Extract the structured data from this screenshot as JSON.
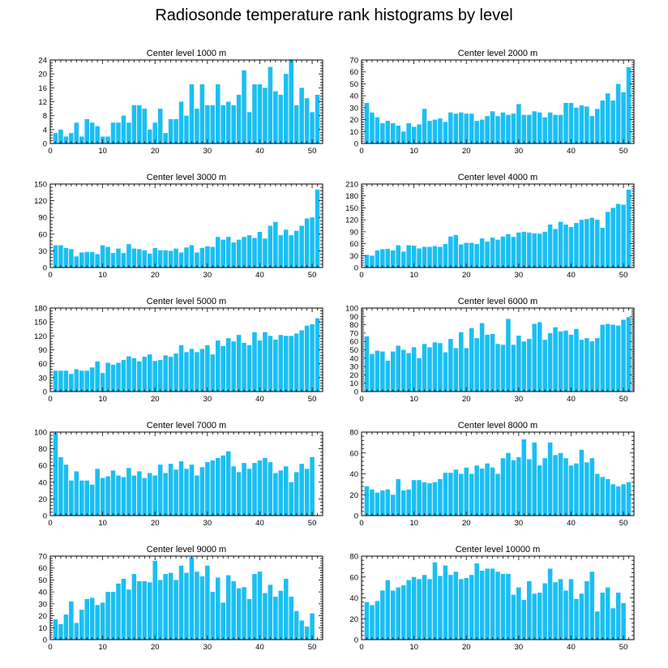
{
  "figure": {
    "title": "Radiosonde temperature rank histograms by level"
  },
  "colors": {
    "bar": "#1ABFF2",
    "axis": "#000000",
    "background": "#ffffff"
  },
  "chart_data": [
    {
      "type": "bar",
      "title": "Center level 1000 m",
      "xlim": [
        0,
        52
      ],
      "ylim": [
        0,
        24
      ],
      "xticks": [
        0,
        10,
        20,
        30,
        40,
        50
      ],
      "yticks": [
        0,
        4,
        8,
        12,
        16,
        20,
        24
      ],
      "x": [
        1,
        2,
        3,
        4,
        5,
        6,
        7,
        8,
        9,
        10,
        11,
        12,
        13,
        14,
        15,
        16,
        17,
        18,
        19,
        20,
        21,
        22,
        23,
        24,
        25,
        26,
        27,
        28,
        29,
        30,
        31,
        32,
        33,
        34,
        35,
        36,
        37,
        38,
        39,
        40,
        41,
        42,
        43,
        44,
        45,
        46,
        47,
        48,
        49,
        50,
        51
      ],
      "values": [
        3,
        4,
        2,
        3,
        6,
        2,
        7,
        6,
        5,
        2,
        2,
        6,
        6,
        8,
        6,
        11,
        11,
        10,
        4,
        6,
        10,
        3,
        7,
        7,
        12,
        8,
        17,
        10,
        17,
        11,
        11,
        17,
        11,
        12,
        11,
        14,
        21,
        9,
        17,
        17,
        16,
        22,
        15,
        14,
        20,
        24,
        11,
        16,
        13,
        9,
        14
      ]
    },
    {
      "type": "bar",
      "title": "Center level 2000 m",
      "xlim": [
        0,
        52
      ],
      "ylim": [
        0,
        70
      ],
      "xticks": [
        0,
        10,
        20,
        30,
        40,
        50
      ],
      "yticks": [
        0,
        10,
        20,
        30,
        40,
        50,
        60,
        70
      ],
      "x": [
        1,
        2,
        3,
        4,
        5,
        6,
        7,
        8,
        9,
        10,
        11,
        12,
        13,
        14,
        15,
        16,
        17,
        18,
        19,
        20,
        21,
        22,
        23,
        24,
        25,
        26,
        27,
        28,
        29,
        30,
        31,
        32,
        33,
        34,
        35,
        36,
        37,
        38,
        39,
        40,
        41,
        42,
        43,
        44,
        45,
        46,
        47,
        48,
        49,
        50,
        51
      ],
      "values": [
        34,
        26,
        22,
        17,
        19,
        17,
        15,
        10,
        17,
        14,
        16,
        29,
        19,
        20,
        21,
        18,
        26,
        25,
        26,
        25,
        25,
        19,
        20,
        23,
        27,
        23,
        26,
        24,
        25,
        33,
        24,
        24,
        27,
        26,
        22,
        26,
        24,
        24,
        34,
        34,
        30,
        32,
        31,
        23,
        29,
        36,
        42,
        36,
        50,
        43,
        64
      ]
    },
    {
      "type": "bar",
      "title": "Center level 3000 m",
      "xlim": [
        0,
        52
      ],
      "ylim": [
        0,
        150
      ],
      "xticks": [
        0,
        10,
        20,
        30,
        40,
        50
      ],
      "yticks": [
        0,
        30,
        60,
        90,
        120,
        150
      ],
      "x": [
        1,
        2,
        3,
        4,
        5,
        6,
        7,
        8,
        9,
        10,
        11,
        12,
        13,
        14,
        15,
        16,
        17,
        18,
        19,
        20,
        21,
        22,
        23,
        24,
        25,
        26,
        27,
        28,
        29,
        30,
        31,
        32,
        33,
        34,
        35,
        36,
        37,
        38,
        39,
        40,
        41,
        42,
        43,
        44,
        45,
        46,
        47,
        48,
        49,
        50,
        51
      ],
      "values": [
        40,
        40,
        35,
        33,
        20,
        27,
        28,
        28,
        24,
        40,
        37,
        26,
        34,
        26,
        42,
        34,
        33,
        31,
        25,
        35,
        31,
        31,
        30,
        34,
        27,
        36,
        40,
        27,
        35,
        38,
        37,
        55,
        50,
        55,
        45,
        50,
        55,
        58,
        53,
        64,
        52,
        75,
        82,
        58,
        68,
        58,
        66,
        75,
        88,
        90,
        140
      ]
    },
    {
      "type": "bar",
      "title": "Center level 4000 m",
      "xlim": [
        0,
        52
      ],
      "ylim": [
        0,
        210
      ],
      "xticks": [
        0,
        10,
        20,
        30,
        40,
        50
      ],
      "yticks": [
        0,
        30,
        60,
        90,
        120,
        150,
        180,
        210
      ],
      "x": [
        1,
        2,
        3,
        4,
        5,
        6,
        7,
        8,
        9,
        10,
        11,
        12,
        13,
        14,
        15,
        16,
        17,
        18,
        19,
        20,
        21,
        22,
        23,
        24,
        25,
        26,
        27,
        28,
        29,
        30,
        31,
        32,
        33,
        34,
        35,
        36,
        37,
        38,
        39,
        40,
        41,
        42,
        43,
        44,
        45,
        46,
        47,
        48,
        49,
        50,
        51
      ],
      "values": [
        32,
        30,
        43,
        46,
        47,
        43,
        56,
        40,
        56,
        55,
        48,
        52,
        52,
        54,
        52,
        59,
        78,
        82,
        58,
        62,
        62,
        59,
        73,
        65,
        75,
        70,
        78,
        84,
        77,
        88,
        90,
        88,
        86,
        85,
        90,
        108,
        97,
        115,
        108,
        102,
        112,
        120,
        122,
        125,
        120,
        100,
        140,
        150,
        160,
        158,
        196
      ]
    },
    {
      "type": "bar",
      "title": "Center level 5000 m",
      "xlim": [
        0,
        52
      ],
      "ylim": [
        0,
        180
      ],
      "xticks": [
        0,
        10,
        20,
        30,
        40,
        50
      ],
      "yticks": [
        0,
        30,
        60,
        90,
        120,
        150,
        180
      ],
      "x": [
        1,
        2,
        3,
        4,
        5,
        6,
        7,
        8,
        9,
        10,
        11,
        12,
        13,
        14,
        15,
        16,
        17,
        18,
        19,
        20,
        21,
        22,
        23,
        24,
        25,
        26,
        27,
        28,
        29,
        30,
        31,
        32,
        33,
        34,
        35,
        36,
        37,
        38,
        39,
        40,
        41,
        42,
        43,
        44,
        45,
        46,
        47,
        48,
        49,
        50,
        51
      ],
      "values": [
        45,
        45,
        45,
        38,
        48,
        45,
        45,
        52,
        65,
        40,
        62,
        58,
        62,
        68,
        76,
        72,
        65,
        75,
        80,
        66,
        68,
        78,
        75,
        82,
        100,
        85,
        92,
        85,
        92,
        100,
        80,
        110,
        98,
        115,
        108,
        122,
        105,
        100,
        128,
        110,
        128,
        120,
        112,
        122,
        120,
        120,
        125,
        132,
        142,
        145,
        158
      ]
    },
    {
      "type": "bar",
      "title": "Center level 6000 m",
      "xlim": [
        0,
        52
      ],
      "ylim": [
        0,
        100
      ],
      "xticks": [
        0,
        10,
        20,
        30,
        40,
        50
      ],
      "yticks": [
        0,
        10,
        20,
        30,
        40,
        50,
        60,
        70,
        80,
        90,
        100
      ],
      "x": [
        1,
        2,
        3,
        4,
        5,
        6,
        7,
        8,
        9,
        10,
        11,
        12,
        13,
        14,
        15,
        16,
        17,
        18,
        19,
        20,
        21,
        22,
        23,
        24,
        25,
        26,
        27,
        28,
        29,
        30,
        31,
        32,
        33,
        34,
        35,
        36,
        37,
        38,
        39,
        40,
        41,
        42,
        43,
        44,
        45,
        46,
        47,
        48,
        49,
        50,
        51
      ],
      "values": [
        66,
        45,
        49,
        48,
        37,
        48,
        55,
        50,
        46,
        53,
        40,
        57,
        53,
        59,
        58,
        47,
        63,
        52,
        71,
        52,
        76,
        64,
        82,
        68,
        69,
        57,
        56,
        87,
        56,
        67,
        60,
        63,
        81,
        83,
        62,
        70,
        77,
        72,
        73,
        68,
        75,
        62,
        64,
        60,
        64,
        80,
        81,
        80,
        79,
        86,
        89
      ]
    },
    {
      "type": "bar",
      "title": "Center level 7000 m",
      "xlim": [
        0,
        52
      ],
      "ylim": [
        0,
        100
      ],
      "xticks": [
        0,
        10,
        20,
        30,
        40,
        50
      ],
      "yticks": [
        0,
        20,
        40,
        60,
        80,
        100
      ],
      "x": [
        1,
        2,
        3,
        4,
        5,
        6,
        7,
        8,
        9,
        10,
        11,
        12,
        13,
        14,
        15,
        16,
        17,
        18,
        19,
        20,
        21,
        22,
        23,
        24,
        25,
        26,
        27,
        28,
        29,
        30,
        31,
        32,
        33,
        34,
        35,
        36,
        37,
        38,
        39,
        40,
        41,
        42,
        43,
        44,
        45,
        46,
        47,
        48,
        49,
        50,
        51
      ],
      "values": [
        99,
        70,
        61,
        42,
        53,
        42,
        42,
        37,
        56,
        45,
        47,
        54,
        48,
        46,
        57,
        48,
        53,
        45,
        51,
        48,
        61,
        51,
        62,
        55,
        65,
        56,
        61,
        48,
        58,
        64,
        66,
        69,
        72,
        77,
        59,
        52,
        63,
        56,
        63,
        66,
        69,
        64,
        51,
        54,
        59,
        40,
        52,
        62,
        56,
        70,
        null
      ]
    },
    {
      "type": "bar",
      "title": "Center level 8000 m",
      "xlim": [
        0,
        52
      ],
      "ylim": [
        0,
        80
      ],
      "xticks": [
        0,
        10,
        20,
        30,
        40,
        50
      ],
      "yticks": [
        0,
        20,
        40,
        60,
        80
      ],
      "x": [
        1,
        2,
        3,
        4,
        5,
        6,
        7,
        8,
        9,
        10,
        11,
        12,
        13,
        14,
        15,
        16,
        17,
        18,
        19,
        20,
        21,
        22,
        23,
        24,
        25,
        26,
        27,
        28,
        29,
        30,
        31,
        32,
        33,
        34,
        35,
        36,
        37,
        38,
        39,
        40,
        41,
        42,
        43,
        44,
        45,
        46,
        47,
        48,
        49,
        50,
        51
      ],
      "values": [
        28,
        25,
        22,
        24,
        25,
        20,
        35,
        24,
        25,
        34,
        34,
        32,
        31,
        32,
        35,
        41,
        41,
        44,
        40,
        46,
        40,
        48,
        45,
        50,
        46,
        40,
        55,
        60,
        53,
        56,
        73,
        54,
        70,
        48,
        55,
        70,
        58,
        60,
        55,
        48,
        50,
        63,
        51,
        55,
        40,
        37,
        35,
        30,
        28,
        30,
        32
      ]
    },
    {
      "type": "bar",
      "title": "Center level 9000 m",
      "xlim": [
        0,
        52
      ],
      "ylim": [
        0,
        70
      ],
      "xticks": [
        0,
        10,
        20,
        30,
        40,
        50
      ],
      "yticks": [
        0,
        10,
        20,
        30,
        40,
        50,
        60,
        70
      ],
      "x": [
        1,
        2,
        3,
        4,
        5,
        6,
        7,
        8,
        9,
        10,
        11,
        12,
        13,
        14,
        15,
        16,
        17,
        18,
        19,
        20,
        21,
        22,
        23,
        24,
        25,
        26,
        27,
        28,
        29,
        30,
        31,
        32,
        33,
        34,
        35,
        36,
        37,
        38,
        39,
        40,
        41,
        42,
        43,
        44,
        45,
        46,
        47,
        48,
        49,
        50,
        51
      ],
      "values": [
        17,
        13,
        21,
        32,
        14,
        25,
        34,
        35,
        29,
        31,
        40,
        40,
        47,
        51,
        42,
        55,
        49,
        49,
        48,
        66,
        50,
        55,
        56,
        50,
        62,
        56,
        69,
        57,
        53,
        62,
        40,
        52,
        31,
        54,
        49,
        43,
        44,
        34,
        55,
        57,
        39,
        46,
        36,
        41,
        51,
        36,
        24,
        16,
        11,
        22,
        null
      ]
    },
    {
      "type": "bar",
      "title": "Center level 10000 m",
      "xlim": [
        0,
        52
      ],
      "ylim": [
        0,
        80
      ],
      "xticks": [
        0,
        10,
        20,
        30,
        40,
        50
      ],
      "yticks": [
        0,
        20,
        40,
        60,
        80
      ],
      "x": [
        1,
        2,
        3,
        4,
        5,
        6,
        7,
        8,
        9,
        10,
        11,
        12,
        13,
        14,
        15,
        16,
        17,
        18,
        19,
        20,
        21,
        22,
        23,
        24,
        25,
        26,
        27,
        28,
        29,
        30,
        31,
        32,
        33,
        34,
        35,
        36,
        37,
        38,
        39,
        40,
        41,
        42,
        43,
        44,
        45,
        46,
        47,
        48,
        49,
        50,
        51
      ],
      "values": [
        36,
        33,
        37,
        47,
        57,
        47,
        50,
        52,
        57,
        60,
        58,
        62,
        58,
        74,
        61,
        71,
        62,
        65,
        58,
        59,
        62,
        73,
        66,
        68,
        68,
        65,
        63,
        63,
        43,
        50,
        38,
        56,
        44,
        45,
        54,
        68,
        55,
        58,
        47,
        58,
        39,
        44,
        56,
        65,
        27,
        45,
        50,
        30,
        45,
        35,
        null
      ]
    }
  ]
}
